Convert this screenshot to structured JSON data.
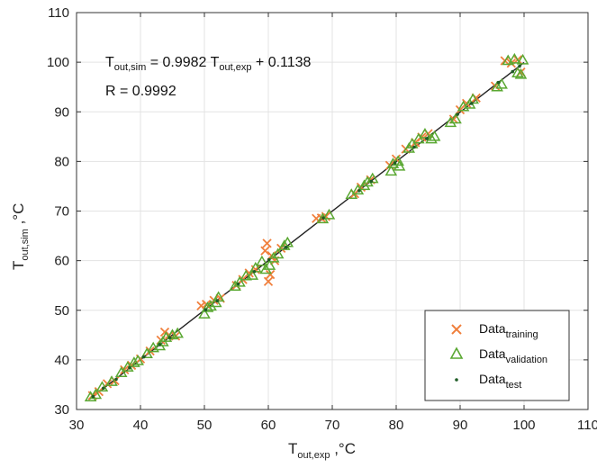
{
  "chart_data": {
    "type": "scatter",
    "xlabel": {
      "main": "T",
      "sub": "out,exp",
      "unit": " ,°C"
    },
    "ylabel": {
      "main": "T",
      "sub": "out,sim",
      "unit": " ,°C"
    },
    "xlim": [
      30,
      110
    ],
    "ylim": [
      30,
      110
    ],
    "xticks": [
      "30",
      "40",
      "50",
      "60",
      "70",
      "80",
      "90",
      "100",
      "110"
    ],
    "yticks": [
      "30",
      "40",
      "50",
      "60",
      "70",
      "80",
      "90",
      "100",
      "110"
    ],
    "grid": true,
    "legend_position": "bottom-right",
    "annotation": {
      "line1": {
        "a": "T",
        "a_sub": "out,sim",
        "b": " = 0.9982 T",
        "b_sub": "out,exp",
        "c": " + 0.1138"
      },
      "line2": "R = 0.9992"
    },
    "fit_line": {
      "slope": 0.9982,
      "intercept": 0.1138,
      "x_range": [
        32,
        100
      ]
    },
    "series": [
      {
        "name": "Data",
        "name_sub": "training",
        "marker": "x",
        "color": "#f07f3c",
        "points": [
          [
            32.5,
            32.8
          ],
          [
            33.5,
            33.6
          ],
          [
            34.8,
            35.2
          ],
          [
            36.0,
            35.8
          ],
          [
            37.5,
            38.0
          ],
          [
            38.6,
            38.9
          ],
          [
            40.0,
            40.2
          ],
          [
            41.5,
            41.8
          ],
          [
            43.2,
            44.0
          ],
          [
            43.8,
            45.6
          ],
          [
            44.5,
            45.0
          ],
          [
            45.5,
            44.8
          ],
          [
            49.5,
            50.9
          ],
          [
            50.3,
            51.2
          ],
          [
            51.5,
            52.0
          ],
          [
            52.5,
            52.4
          ],
          [
            55.0,
            55.0
          ],
          [
            56.0,
            56.2
          ],
          [
            57.0,
            57.5
          ],
          [
            58.0,
            58.2
          ],
          [
            59.5,
            62.0
          ],
          [
            59.8,
            63.5
          ],
          [
            60.0,
            55.8
          ],
          [
            60.3,
            57.2
          ],
          [
            60.5,
            61.0
          ],
          [
            61.0,
            60.0
          ],
          [
            62.0,
            62.5
          ],
          [
            67.5,
            68.5
          ],
          [
            68.3,
            68.6
          ],
          [
            69.0,
            68.9
          ],
          [
            73.5,
            73.5
          ],
          [
            74.5,
            74.8
          ],
          [
            76.0,
            76.3
          ],
          [
            79.0,
            79.2
          ],
          [
            80.0,
            80.5
          ],
          [
            81.5,
            82.5
          ],
          [
            83.0,
            83.8
          ],
          [
            84.0,
            84.9
          ],
          [
            85.0,
            85.6
          ],
          [
            89.0,
            88.5
          ],
          [
            90.0,
            90.4
          ],
          [
            91.0,
            91.7
          ],
          [
            92.5,
            92.8
          ],
          [
            95.5,
            95.2
          ],
          [
            97.0,
            100.3
          ],
          [
            98.0,
            99.8
          ],
          [
            99.0,
            100.5
          ],
          [
            99.5,
            98.0
          ]
        ]
      },
      {
        "name": "Data",
        "name_sub": "validation",
        "marker": "triangle",
        "color": "#5aa832",
        "points": [
          [
            32.2,
            32.5
          ],
          [
            33.0,
            33.0
          ],
          [
            34.0,
            34.5
          ],
          [
            35.5,
            35.6
          ],
          [
            37.0,
            37.4
          ],
          [
            38.0,
            38.5
          ],
          [
            39.0,
            39.4
          ],
          [
            39.6,
            39.8
          ],
          [
            41.0,
            41.2
          ],
          [
            42.0,
            42.4
          ],
          [
            43.0,
            42.8
          ],
          [
            43.5,
            43.6
          ],
          [
            44.0,
            44.5
          ],
          [
            45.0,
            45.0
          ],
          [
            45.8,
            45.3
          ],
          [
            50.0,
            49.2
          ],
          [
            50.5,
            50.5
          ],
          [
            51.0,
            50.8
          ],
          [
            51.8,
            51.5
          ],
          [
            52.2,
            52.6
          ],
          [
            54.8,
            54.8
          ],
          [
            55.5,
            55.6
          ],
          [
            56.5,
            56.9
          ],
          [
            57.5,
            57.0
          ],
          [
            58.0,
            58.5
          ],
          [
            59.0,
            59.8
          ],
          [
            59.6,
            58.2
          ],
          [
            60.2,
            59.0
          ],
          [
            60.8,
            60.5
          ],
          [
            61.5,
            61.3
          ],
          [
            62.5,
            63.0
          ],
          [
            63.0,
            63.6
          ],
          [
            68.5,
            68.4
          ],
          [
            69.5,
            69.2
          ],
          [
            73.0,
            73.3
          ],
          [
            74.0,
            74.2
          ],
          [
            75.0,
            75.1
          ],
          [
            75.5,
            75.8
          ],
          [
            76.3,
            76.5
          ],
          [
            79.2,
            78.0
          ],
          [
            79.5,
            79.5
          ],
          [
            80.3,
            80.0
          ],
          [
            80.5,
            79.0
          ],
          [
            82.0,
            82.6
          ],
          [
            82.5,
            83.5
          ],
          [
            83.5,
            84.5
          ],
          [
            84.5,
            85.5
          ],
          [
            85.5,
            84.5
          ],
          [
            86.0,
            85.0
          ],
          [
            88.5,
            87.8
          ],
          [
            89.3,
            88.5
          ],
          [
            90.5,
            91.0
          ],
          [
            91.5,
            91.5
          ],
          [
            92.0,
            92.5
          ],
          [
            95.8,
            95.0
          ],
          [
            96.5,
            95.5
          ],
          [
            97.5,
            100.3
          ],
          [
            98.5,
            100.6
          ],
          [
            99.0,
            97.8
          ],
          [
            99.5,
            97.5
          ],
          [
            99.8,
            100.4
          ]
        ]
      },
      {
        "name": "Data",
        "name_sub": "test",
        "marker": "dot",
        "color": "#1f5c26",
        "points": [
          [
            32.6,
            32.6
          ],
          [
            34.2,
            34.3
          ],
          [
            36.2,
            36.1
          ],
          [
            38.3,
            38.4
          ],
          [
            40.5,
            40.6
          ],
          [
            43.0,
            43.1
          ],
          [
            44.6,
            44.5
          ],
          [
            50.2,
            50.1
          ],
          [
            52.0,
            51.9
          ],
          [
            55.3,
            55.3
          ],
          [
            57.8,
            57.8
          ],
          [
            60.1,
            60.2
          ],
          [
            62.8,
            62.7
          ],
          [
            68.6,
            68.6
          ],
          [
            74.2,
            74.1
          ],
          [
            76.1,
            76.0
          ],
          [
            79.8,
            79.7
          ],
          [
            82.8,
            82.9
          ],
          [
            84.8,
            84.6
          ],
          [
            89.6,
            89.5
          ],
          [
            91.8,
            91.7
          ],
          [
            96.0,
            95.9
          ],
          [
            98.2,
            98.1
          ],
          [
            99.3,
            99.2
          ]
        ]
      }
    ]
  }
}
